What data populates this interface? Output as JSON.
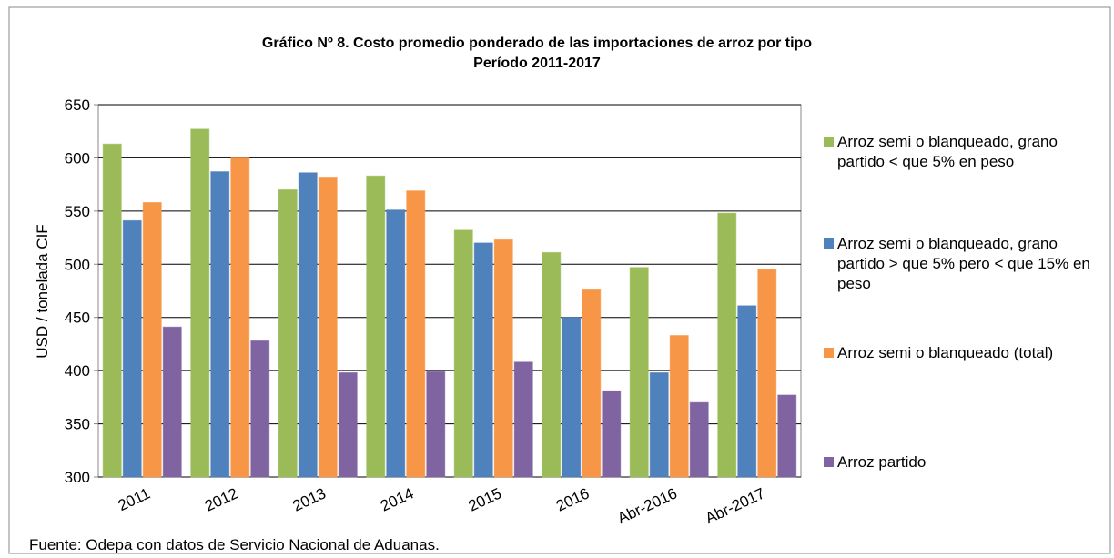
{
  "chart_data": {
    "type": "bar",
    "title": "Gráfico Nº 8. Costo promedio ponderado de las importaciones de arroz por tipo",
    "subtitle": "Período 2011-2017",
    "y_label": "USD / tonelada CIF",
    "source": "Fuente: Odepa con datos de Servicio Nacional de Aduanas.",
    "categories": [
      "2011",
      "2012",
      "2013",
      "2014",
      "2015",
      "2016",
      "Abr-2016",
      "Abr-2017"
    ],
    "series": [
      {
        "name": "Arroz semi o blanqueado, grano partido < que 5% en peso",
        "color": "#9bbb59",
        "values": [
          613,
          627,
          570,
          583,
          532,
          511,
          497,
          548
        ]
      },
      {
        "name": "Arroz semi o blanqueado, grano partido > que 5% pero < que 15% en peso",
        "color": "#4f81bd",
        "values": [
          541,
          587,
          586,
          551,
          520,
          450,
          398,
          461
        ]
      },
      {
        "name": "Arroz semi o blanqueado (total)",
        "color": "#f79646",
        "values": [
          558,
          600,
          582,
          569,
          523,
          476,
          433,
          495
        ]
      },
      {
        "name": "Arroz partido",
        "color": "#8064a2",
        "values": [
          441,
          428,
          398,
          399,
          408,
          381,
          370,
          377
        ]
      }
    ],
    "ylim": [
      300,
      650
    ],
    "yticks": [
      300,
      350,
      400,
      450,
      500,
      550,
      600,
      650
    ],
    "grid": true,
    "legend": "right"
  }
}
